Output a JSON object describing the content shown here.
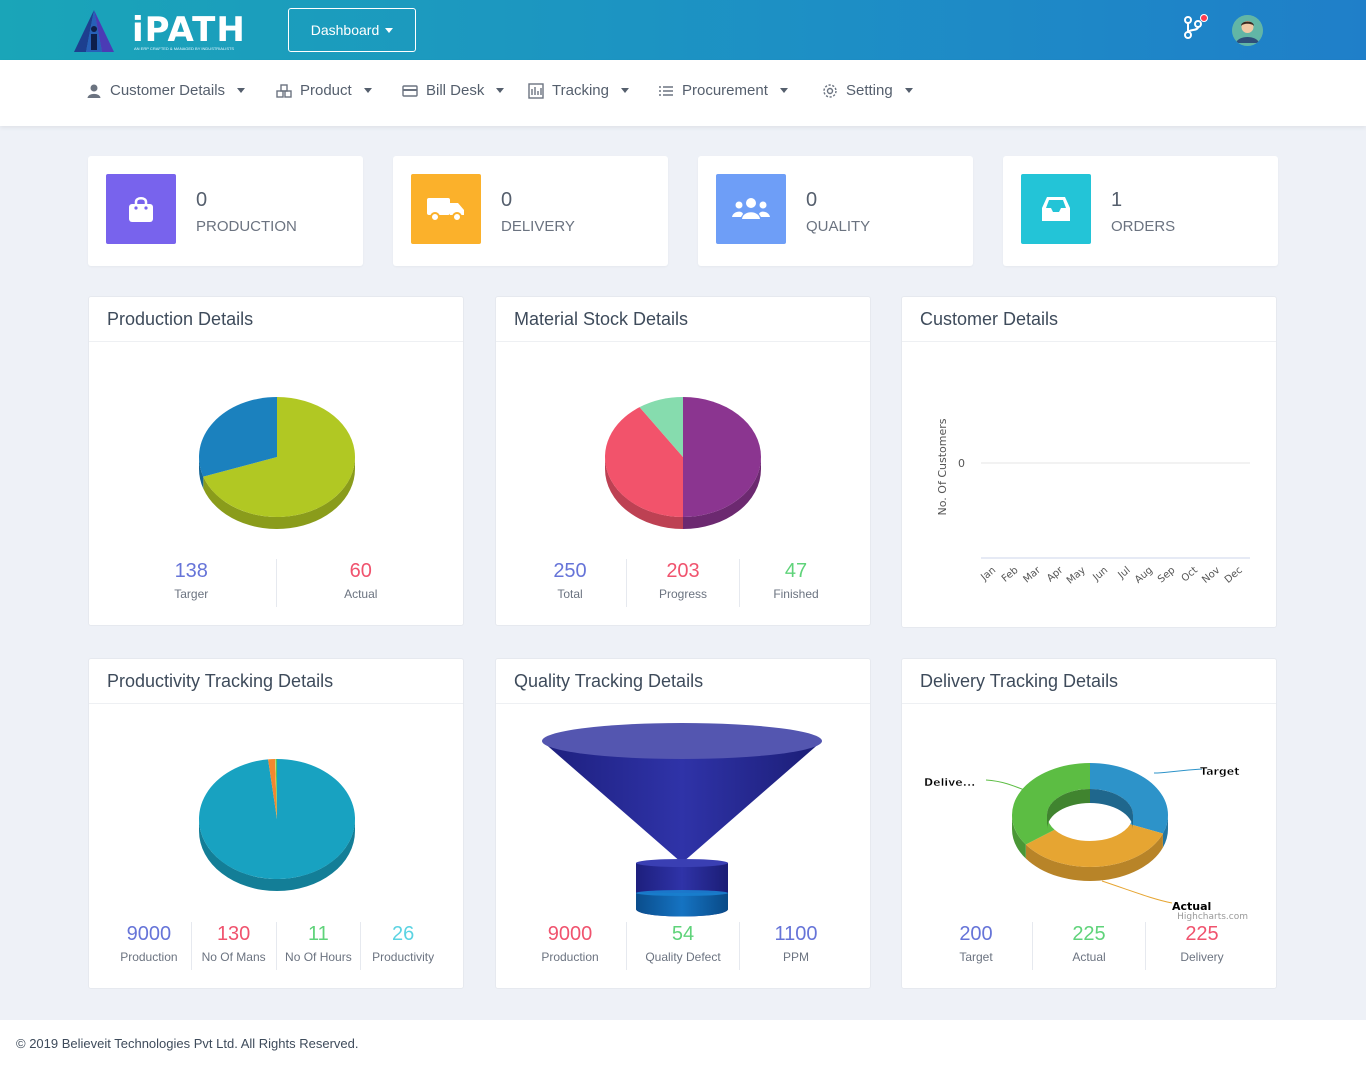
{
  "header": {
    "brand": "iPATH",
    "brand_tagline": "AN ERP CRAFTED & MANAGED BY INDUSTRIALISTS",
    "dashboard_label": "Dashboard"
  },
  "nav": {
    "items": [
      {
        "label": "Customer Details",
        "icon": "user-icon"
      },
      {
        "label": "Product",
        "icon": "cubes-icon"
      },
      {
        "label": "Bill Desk",
        "icon": "credit-card-icon"
      },
      {
        "label": "Tracking",
        "icon": "tracking-icon"
      },
      {
        "label": "Procurement",
        "icon": "list-icon"
      },
      {
        "label": "Setting",
        "icon": "gear-icon"
      }
    ]
  },
  "stats": [
    {
      "value": "0",
      "label": "PRODUCTION",
      "icon": "shopping-bag-icon",
      "color": "#7863ed"
    },
    {
      "value": "0",
      "label": "DELIVERY",
      "icon": "truck-icon",
      "color": "#fbb12b"
    },
    {
      "value": "0",
      "label": "QUALITY",
      "icon": "users-icon",
      "color": "#6e9ef7"
    },
    {
      "value": "1",
      "label": "ORDERS",
      "icon": "inbox-icon",
      "color": "#23c4d7"
    }
  ],
  "panels": {
    "production": {
      "title": "Production Details",
      "metrics": [
        {
          "value": "138",
          "label": "Targer"
        },
        {
          "value": "60",
          "label": "Actual"
        }
      ]
    },
    "material": {
      "title": "Material Stock Details",
      "metrics": [
        {
          "value": "250",
          "label": "Total"
        },
        {
          "value": "203",
          "label": "Progress"
        },
        {
          "value": "47",
          "label": "Finished"
        }
      ]
    },
    "customer": {
      "title": "Customer Details"
    },
    "productivity": {
      "title": "Productivity Tracking Details",
      "metrics": [
        {
          "value": "9000",
          "label": "Production"
        },
        {
          "value": "130",
          "label": "No Of Mans"
        },
        {
          "value": "11",
          "label": "No Of Hours"
        },
        {
          "value": "26",
          "label": "Productivity"
        }
      ]
    },
    "quality": {
      "title": "Quality Tracking Details",
      "metrics": [
        {
          "value": "9000",
          "label": "Production"
        },
        {
          "value": "54",
          "label": "Quality Defect"
        },
        {
          "value": "1100",
          "label": "PPM"
        }
      ]
    },
    "delivery": {
      "title": "Delivery Tracking Details",
      "metrics": [
        {
          "value": "200",
          "label": "Target"
        },
        {
          "value": "225",
          "label": "Actual"
        },
        {
          "value": "225",
          "label": "Delivery"
        }
      ],
      "credit": "Highcharts.com"
    }
  },
  "chart_data": [
    {
      "type": "pie",
      "categories": [
        "Targer",
        "Actual"
      ],
      "values": [
        138,
        60
      ],
      "colors": [
        "#b1c823",
        "#1b81be"
      ]
    },
    {
      "type": "pie",
      "categories": [
        "Total",
        "Progress",
        "Finished"
      ],
      "values": [
        250,
        203,
        47
      ],
      "colors": [
        "#8b3590",
        "#f2536b",
        "#86dcae"
      ]
    },
    {
      "type": "line",
      "categories": [
        "Jan",
        "Feb",
        "Mar",
        "Apr",
        "May",
        "Jun",
        "Jul",
        "Aug",
        "Sep",
        "Oct",
        "Nov",
        "Dec"
      ],
      "ylabel": "No. Of Customers",
      "yticks": [
        "0"
      ],
      "series": []
    },
    {
      "type": "pie",
      "categories": [
        "Production",
        "No Of Mans",
        "No Of Hours",
        "Productivity"
      ],
      "values": [
        9000,
        130,
        11,
        26
      ],
      "colors": [
        "#18a2c1",
        "#f3872f",
        "#ffd34e",
        "#55c45a"
      ]
    },
    {
      "type": "funnel",
      "categories": [
        "Production",
        "Quality Defect",
        "PPM"
      ],
      "values": [
        9000,
        54,
        1100
      ],
      "colors": [
        "#2d2e9a",
        "#0a63a8"
      ]
    },
    {
      "type": "donut",
      "categories": [
        "Target",
        "Actual",
        "Delive..."
      ],
      "values": [
        200,
        225,
        225
      ],
      "colors": [
        "#2d93c9",
        "#e6a532",
        "#5cbd43"
      ]
    }
  ],
  "footer": {
    "copyright": "© 2019 Believeit Technologies Pvt Ltd. All Rights Reserved."
  }
}
